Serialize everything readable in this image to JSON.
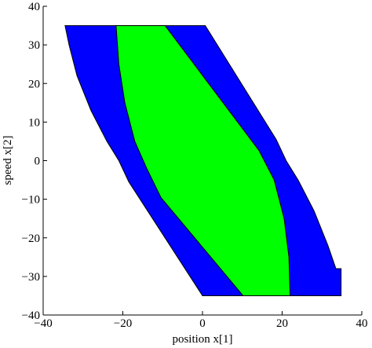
{
  "chart_data": {
    "type": "polygon",
    "x_label": "position x[1]",
    "y_label": "speed x[2]",
    "xlim": [
      -40,
      40
    ],
    "ylim": [
      -40,
      40
    ],
    "xticks": [
      {
        "value": -40,
        "label": "−40"
      },
      {
        "value": -20,
        "label": "−20"
      },
      0,
      20,
      40
    ],
    "yticks": [
      {
        "value": -40,
        "label": "−40"
      },
      {
        "value": -30,
        "label": "−30"
      },
      {
        "value": -20,
        "label": "−20"
      },
      {
        "value": -10,
        "label": "−10"
      },
      0,
      10,
      20,
      30,
      40
    ],
    "series": [
      {
        "color": "#0000ff",
        "x": [
          -34.5,
          0.7,
          18.5,
          21,
          24,
          28,
          31.5,
          33.5,
          34.8,
          34.8,
          0,
          -18.5,
          -21,
          -24,
          -28,
          -31.5,
          -33.5
        ],
        "y": [
          35,
          35,
          5.5,
          0,
          -5,
          -13,
          -22,
          -28,
          -28,
          -35,
          -35,
          -5.5,
          0,
          5,
          13,
          22,
          30
        ]
      },
      {
        "color": "#00ff00",
        "x": [
          -21.7,
          -9.4,
          14.2,
          18,
          20.5,
          21.7,
          22,
          10.2,
          -10.4,
          -14,
          -17,
          -19.5,
          -21
        ],
        "y": [
          35,
          35,
          2.6,
          -5,
          -15,
          -25,
          -35,
          -35,
          -9.6,
          -2,
          5,
          15,
          25
        ]
      }
    ]
  }
}
